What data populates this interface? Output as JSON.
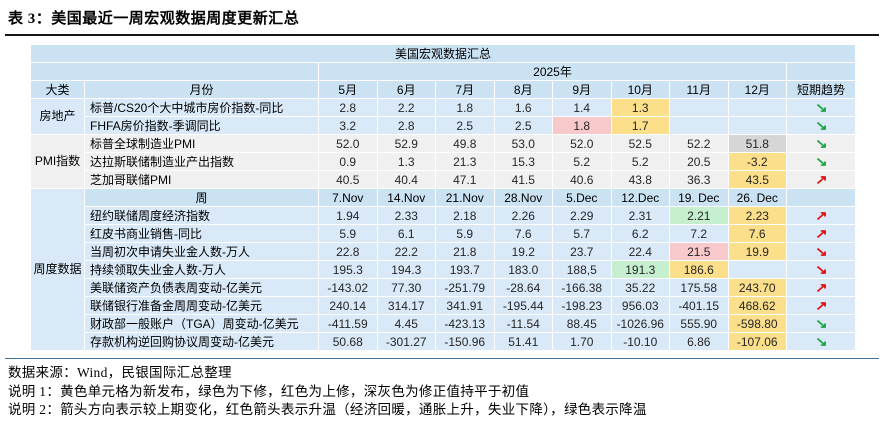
{
  "title": "表 3：美国最近一周宏观数据周度更新汇总",
  "colors": {
    "header_blue": "#cbe2f3",
    "row_blue": "#d9e9f8",
    "row_gray": "#f0f0f0",
    "highlight_yellow": "#fbdf8a",
    "highlight_pink": "#f8c9cb",
    "highlight_green": "#c5efce",
    "highlight_gray": "#d6d6d6",
    "arrow_red": "#dd1111",
    "arrow_green": "#1ba441",
    "title_rule": "#151515",
    "bottom_rule": "#41719c"
  },
  "icons": {
    "trend_up": "↗",
    "trend_down": "↘"
  },
  "table": {
    "top_header": "美国宏观数据汇总",
    "year_header": "2025年",
    "category_header": "大类",
    "month_header": "月份",
    "week_header": "周",
    "trend_header": "短期趋势",
    "months": [
      "5月",
      "6月",
      "7月",
      "8月",
      "9月",
      "10月",
      "11月",
      "12月"
    ],
    "weeks": [
      "7.Nov",
      "14.Nov",
      "21.Nov",
      "28.Nov",
      "5.Dec",
      "12.Dec",
      "19. Dec",
      "26. Dec"
    ],
    "monthly_groups": [
      {
        "name": "房地产",
        "bg": "blue",
        "rows": [
          {
            "label": "标普/CS20个大中城市房价指数-同比",
            "values": [
              "2.8",
              "2.2",
              "1.8",
              "1.6",
              "1.4",
              "1.3",
              "",
              ""
            ],
            "marks": [
              "",
              "",
              "",
              "",
              "",
              "yellow",
              "",
              ""
            ],
            "trend": "down-green"
          },
          {
            "label": "FHFA房价指数-季调同比",
            "values": [
              "3.2",
              "2.8",
              "2.5",
              "2.5",
              "1.8",
              "1.7",
              "",
              ""
            ],
            "marks": [
              "",
              "",
              "",
              "",
              "pink",
              "yellow",
              "",
              ""
            ],
            "trend": "down-green"
          }
        ]
      },
      {
        "name": "PMI指数",
        "bg": "gray",
        "rows": [
          {
            "label": "标普全球制造业PMI",
            "values": [
              "52.0",
              "52.9",
              "49.8",
              "53.0",
              "52.0",
              "52.5",
              "52.2",
              "51.8"
            ],
            "marks": [
              "",
              "",
              "",
              "",
              "",
              "",
              "",
              "gray"
            ],
            "trend": "down-green"
          },
          {
            "label": "达拉斯联储制造业产出指数",
            "values": [
              "0.9",
              "1.3",
              "21.3",
              "15.3",
              "5.2",
              "5.2",
              "20.5",
              "-3.2"
            ],
            "marks": [
              "",
              "",
              "",
              "",
              "",
              "",
              "",
              "yellow"
            ],
            "trend": "down-green"
          },
          {
            "label": "芝加哥联储PMI",
            "values": [
              "40.5",
              "40.4",
              "47.1",
              "41.5",
              "40.6",
              "43.8",
              "36.3",
              "43.5"
            ],
            "marks": [
              "",
              "",
              "",
              "",
              "",
              "",
              "",
              "yellow"
            ],
            "trend": "up-red"
          }
        ]
      }
    ],
    "weekly_group": {
      "name": "周度数据",
      "bg": "blue",
      "rows": [
        {
          "label": "纽约联储周度经济指数",
          "values": [
            "1.94",
            "2.33",
            "2.18",
            "2.26",
            "2.29",
            "2.31",
            "2.21",
            "2.23"
          ],
          "marks": [
            "",
            "",
            "",
            "",
            "",
            "",
            "green",
            "yellow"
          ],
          "trend": "up-red"
        },
        {
          "label": "红皮书商业销售-同比",
          "values": [
            "5.9",
            "6.1",
            "5.9",
            "7.6",
            "5.7",
            "6.2",
            "7.2",
            "7.6"
          ],
          "marks": [
            "",
            "",
            "",
            "",
            "",
            "",
            "",
            "yellow"
          ],
          "trend": "up-red"
        },
        {
          "label": "当周初次申请失业金人数-万人",
          "values": [
            "22.8",
            "22.2",
            "21.8",
            "19.2",
            "23.7",
            "22.4",
            "21.5",
            "19.9"
          ],
          "marks": [
            "",
            "",
            "",
            "",
            "",
            "",
            "pink",
            "yellow"
          ],
          "trend": "down-red"
        },
        {
          "label": "持续领取失业金人数-万人",
          "values": [
            "195.3",
            "194.3",
            "193.7",
            "183.0",
            "188,5",
            "191.3",
            "186.6",
            ""
          ],
          "marks": [
            "",
            "",
            "",
            "",
            "",
            "green",
            "yellow",
            ""
          ],
          "trend": "down-red"
        },
        {
          "label": "美联储资产负债表周变动-亿美元",
          "values": [
            "-143.02",
            "77.30",
            "-251.79",
            "-28.64",
            "-166.38",
            "35.22",
            "175.58",
            "243.70"
          ],
          "marks": [
            "",
            "",
            "",
            "",
            "",
            "",
            "",
            "yellow"
          ],
          "trend": "up-red"
        },
        {
          "label": "联储银行准备金周周变动-亿美元",
          "values": [
            "240.14",
            "314.17",
            "341.91",
            "-195.44",
            "-198.23",
            "956.03",
            "-401.15",
            "468.62"
          ],
          "marks": [
            "",
            "",
            "",
            "",
            "",
            "",
            "",
            "yellow"
          ],
          "trend": "up-red"
        },
        {
          "label": "财政部一般账户（TGA）周变动-亿美元",
          "values": [
            "-411.59",
            "4.45",
            "-423.13",
            "-11.54",
            "88.45",
            "-1026.96",
            "555.90",
            "-598.80"
          ],
          "marks": [
            "",
            "",
            "",
            "",
            "",
            "",
            "",
            "yellow"
          ],
          "trend": "down-green"
        },
        {
          "label": "存款机构逆回购协议周变动-亿美元",
          "values": [
            "50.68",
            "-301.27",
            "-150.96",
            "51.41",
            "1.70",
            "-10.10",
            "6.86",
            "-107.06"
          ],
          "marks": [
            "",
            "",
            "",
            "",
            "",
            "",
            "",
            "yellow"
          ],
          "trend": "down-green"
        }
      ]
    }
  },
  "footer": {
    "source": "数据来源：Wind，民银国际汇总整理",
    "note1": "说明 1：黄色单元格为新发布，绿色为下修，红色为上修，深灰色为修正值持平于初值",
    "note2": "说明 2：箭头方向表示较上期变化，红色箭头表示升温（经济回暖，通胀上升，失业下降），绿色表示降温"
  }
}
